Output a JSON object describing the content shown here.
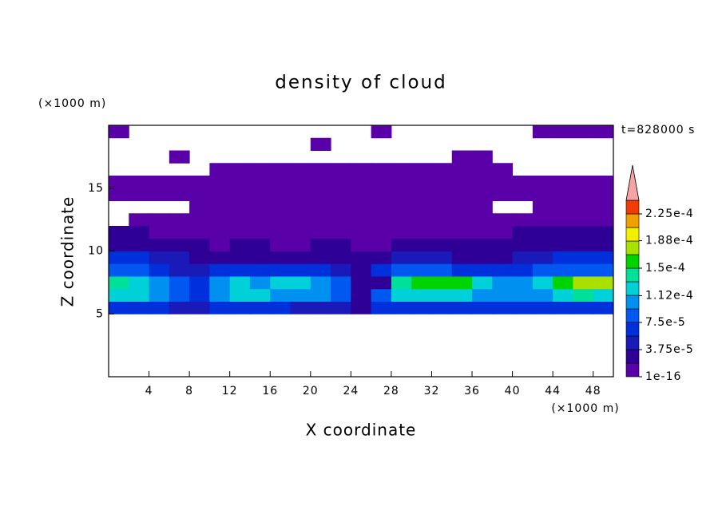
{
  "chart_data": {
    "type": "contour",
    "title": "density of cloud",
    "x_label": "X coordinate",
    "y_label": "Z coordinate",
    "x_unit": "(×1000 m)",
    "y_unit": "(×1000 m)",
    "annotation": "t=828000 s",
    "xlim": [
      0,
      50
    ],
    "ylim": [
      0,
      20
    ],
    "xticks": [
      4,
      8,
      12,
      16,
      20,
      24,
      28,
      32,
      36,
      40,
      44,
      48
    ],
    "yticks": [
      5,
      10,
      15
    ],
    "x": [
      1,
      3,
      5,
      7,
      9,
      11,
      13,
      15,
      17,
      19,
      21,
      23,
      25,
      27,
      29,
      31,
      33,
      35,
      37,
      39,
      41,
      43,
      45,
      47,
      49
    ],
    "y": [
      5.5,
      6.5,
      7.5,
      8.5,
      9.5,
      10.5,
      11.5,
      12.5,
      13.5,
      14.5,
      15.5,
      16.5,
      17.5,
      18.5,
      19.5
    ],
    "z": [
      [
        7e-05,
        6e-05,
        6e-05,
        5e-05,
        4e-05,
        6e-05,
        6e-05,
        6e-05,
        6e-05,
        5e-05,
        5e-05,
        5e-05,
        2e-05,
        6e-05,
        7e-05,
        7e-05,
        7e-05,
        7e-05,
        6e-05,
        6e-05,
        6e-05,
        6e-05,
        7e-05,
        7e-05,
        7e-05
      ],
      [
        0.00012,
        0.00012,
        0.00011,
        9e-05,
        7e-05,
        0.00011,
        0.00012,
        0.00012,
        0.00011,
        0.00011,
        0.0001,
        8e-05,
        3e-05,
        8e-05,
        0.00012,
        0.00013,
        0.00013,
        0.00012,
        0.00011,
        0.0001,
        0.0001,
        0.00011,
        0.00013,
        0.00014,
        0.00013
      ],
      [
        0.00014,
        0.00013,
        0.00011,
        9e-05,
        6e-05,
        0.00011,
        0.00012,
        0.00011,
        0.00012,
        0.00013,
        0.00011,
        8e-05,
        3e-05,
        2e-05,
        0.00014,
        0.00015,
        0.00016,
        0.00015,
        0.00013,
        0.00011,
        0.0001,
        0.00012,
        0.00016,
        0.00018,
        0.00017
      ],
      [
        9e-05,
        8e-05,
        6e-05,
        5e-05,
        4e-05,
        6e-05,
        7e-05,
        6e-05,
        7e-05,
        7e-05,
        6e-05,
        5e-05,
        2e-05,
        6e-05,
        8e-05,
        8e-05,
        8e-05,
        7e-05,
        7e-05,
        6e-05,
        7e-05,
        8e-05,
        9e-05,
        9e-05,
        9e-05
      ],
      [
        6e-05,
        6e-05,
        5e-05,
        4e-05,
        3e-05,
        2e-05,
        2e-05,
        2e-05,
        2e-05,
        3e-05,
        3e-05,
        2e-05,
        2e-05,
        3e-05,
        4e-05,
        4e-05,
        4e-05,
        3e-05,
        3e-05,
        3e-05,
        4e-05,
        5e-05,
        6e-05,
        6e-05,
        6e-05
      ],
      [
        3e-05,
        3e-05,
        2e-05,
        2e-05,
        2e-05,
        1e-05,
        2e-05,
        2e-05,
        1e-05,
        1e-05,
        2e-05,
        2e-05,
        1e-05,
        1e-05,
        2e-05,
        2e-05,
        2e-05,
        2e-05,
        2e-05,
        2e-05,
        2e-05,
        3e-05,
        3e-05,
        3e-05,
        3e-05
      ],
      [
        2e-05,
        2e-05,
        1e-05,
        1e-05,
        1e-05,
        5e-06,
        1e-05,
        1e-05,
        5e-06,
        5e-06,
        1e-05,
        1e-05,
        1e-05,
        5e-06,
        1e-05,
        1e-05,
        1e-05,
        1e-05,
        1e-05,
        1e-05,
        2e-05,
        2e-05,
        2e-05,
        2e-05,
        2e-05
      ],
      [
        0,
        5e-06,
        5e-06,
        5e-06,
        5e-06,
        5e-06,
        5e-06,
        5e-06,
        5e-06,
        5e-06,
        5e-06,
        5e-06,
        5e-06,
        5e-06,
        5e-06,
        5e-06,
        5e-06,
        5e-06,
        5e-06,
        5e-06,
        5e-06,
        5e-06,
        5e-06,
        5e-06,
        5e-06
      ],
      [
        0,
        0,
        0,
        0,
        3e-06,
        3e-06,
        3e-06,
        3e-06,
        3e-06,
        3e-06,
        3e-06,
        3e-06,
        3e-06,
        3e-06,
        3e-06,
        3e-06,
        3e-06,
        3e-06,
        3e-06,
        0,
        0,
        3e-06,
        3e-06,
        3e-06,
        3e-06
      ],
      [
        5e-06,
        5e-06,
        5e-06,
        5e-06,
        5e-06,
        5e-06,
        5e-06,
        5e-06,
        5e-06,
        5e-06,
        5e-06,
        5e-06,
        5e-06,
        5e-06,
        5e-06,
        5e-06,
        5e-06,
        5e-06,
        5e-06,
        5e-06,
        5e-06,
        5e-06,
        5e-06,
        5e-06,
        5e-06
      ],
      [
        3e-06,
        3e-06,
        3e-06,
        3e-06,
        3e-06,
        3e-06,
        3e-06,
        3e-06,
        3e-06,
        3e-06,
        3e-06,
        3e-06,
        3e-06,
        3e-06,
        3e-06,
        3e-06,
        3e-06,
        3e-06,
        3e-06,
        3e-06,
        3e-06,
        3e-06,
        3e-06,
        3e-06,
        3e-06
      ],
      [
        0,
        0,
        0,
        0,
        0,
        3e-06,
        3e-06,
        3e-06,
        3e-06,
        3e-06,
        3e-06,
        3e-06,
        3e-06,
        3e-06,
        3e-06,
        3e-06,
        3e-06,
        3e-06,
        3e-06,
        3e-06,
        0,
        0,
        0,
        0,
        0
      ],
      [
        0,
        0,
        0,
        3e-06,
        0,
        0,
        0,
        0,
        0,
        0,
        0,
        0,
        0,
        0,
        0,
        0,
        0,
        3e-06,
        3e-06,
        0,
        0,
        0,
        0,
        0,
        0
      ],
      [
        0,
        0,
        0,
        0,
        0,
        0,
        0,
        0,
        0,
        0,
        3e-06,
        0,
        0,
        0,
        0,
        0,
        0,
        0,
        0,
        0,
        0,
        0,
        0,
        0,
        0
      ],
      [
        3e-06,
        0,
        0,
        0,
        0,
        0,
        0,
        0,
        0,
        0,
        0,
        0,
        0,
        3e-06,
        0,
        0,
        0,
        0,
        0,
        0,
        0,
        3e-06,
        3e-06,
        3e-06,
        3e-06
      ]
    ],
    "colorbar": {
      "levels": [
        1e-16,
        1.875e-05,
        3.75e-05,
        5.625e-05,
        7.5e-05,
        9.375e-05,
        0.0001125,
        0.00013125,
        0.00015,
        0.00016875,
        0.0001875,
        0.00020625,
        0.000225,
        0.00024375
      ],
      "colors": [
        "#5a00a8",
        "#2e0096",
        "#1a1ab8",
        "#0030dc",
        "#0058f0",
        "#0090f0",
        "#00d0d8",
        "#00e09a",
        "#00d400",
        "#a8e000",
        "#f0f000",
        "#f0a000",
        "#f03c00"
      ],
      "extend_color": "#f4a4a4",
      "ticks": [
        1e-16,
        {
          "value": 3.75e-05,
          "label": "3.75e-5"
        },
        {
          "value": 7.5e-05,
          "label": "7.5e-5"
        },
        {
          "value": 0.000112,
          "label": "1.12e-4"
        },
        {
          "value": 0.00015,
          "label": "1.5e-4"
        },
        {
          "value": 0.000188,
          "label": "1.88e-4"
        },
        {
          "value": 0.000225,
          "label": "2.25e-4"
        }
      ]
    }
  }
}
